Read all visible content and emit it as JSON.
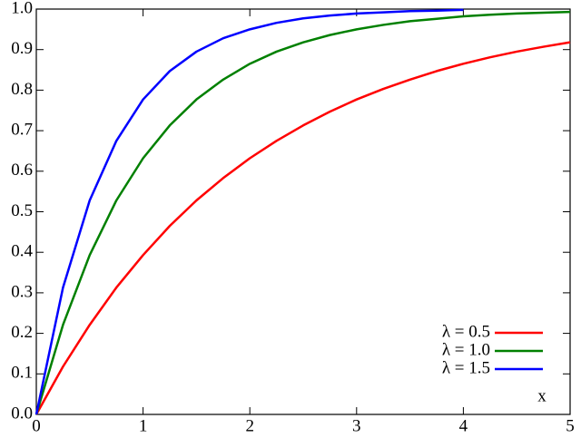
{
  "chart_data": {
    "type": "line",
    "xlabel": "x",
    "x": [
      0,
      0.25,
      0.5,
      0.75,
      1,
      1.25,
      1.5,
      1.75,
      2,
      2.25,
      2.5,
      2.75,
      3,
      3.25,
      3.5,
      3.75,
      4,
      4.25,
      4.5,
      4.75,
      5
    ],
    "series": [
      {
        "name": "λ = 0.5",
        "color": "#ff0000",
        "values": [
          0,
          0.118,
          0.221,
          0.313,
          0.393,
          0.465,
          0.528,
          0.583,
          0.632,
          0.675,
          0.713,
          0.747,
          0.777,
          0.803,
          0.826,
          0.847,
          0.865,
          0.881,
          0.895,
          0.907,
          0.918
        ]
      },
      {
        "name": "λ = 1.0",
        "color": "#008000",
        "values": [
          0,
          0.221,
          0.393,
          0.528,
          0.632,
          0.713,
          0.777,
          0.826,
          0.865,
          0.895,
          0.918,
          0.936,
          0.95,
          0.961,
          0.97,
          0.976,
          0.982,
          0.986,
          0.989,
          0.991,
          0.993
        ]
      },
      {
        "name": "λ = 1.5",
        "color": "#0000ff",
        "values": [
          0,
          0.313,
          0.528,
          0.675,
          0.777,
          0.847,
          0.895,
          0.928,
          0.95,
          0.966,
          0.977,
          0.984,
          0.989,
          0.992,
          0.995,
          0.996,
          0.998,
          null,
          null,
          null,
          null
        ]
      }
    ],
    "xlim": [
      0,
      5
    ],
    "xticks": [
      0,
      1,
      2,
      3,
      4,
      5
    ],
    "ylim": [
      0,
      1
    ],
    "yticks": [
      {
        "value": 0,
        "label": "0.0"
      },
      0.1,
      0.2,
      0.3,
      0.4,
      0.5,
      0.6,
      0.7,
      0.8,
      0.9,
      {
        "value": 1,
        "label": "1.0"
      }
    ],
    "legend": "lower right",
    "grid": false
  }
}
